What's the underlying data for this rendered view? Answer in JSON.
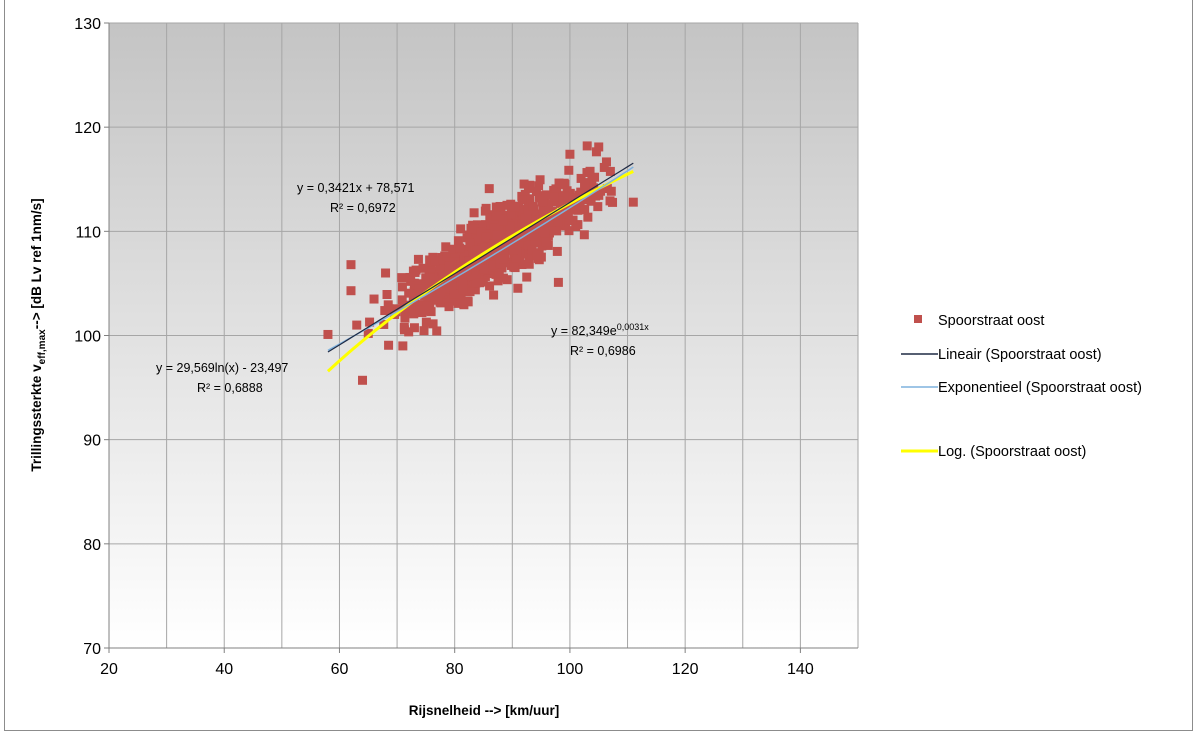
{
  "chart_data": {
    "type": "scatter",
    "title": "",
    "xlabel": "Rijsnelheid --> [km/uur]",
    "ylabel": {
      "main": "Trillingssterkte v",
      "subscript": "eff,max",
      "suffix": "--> [dB Lv ref 1nm/s]"
    },
    "xlim": [
      20,
      150
    ],
    "ylim": [
      70,
      130
    ],
    "x_ticks": [
      20,
      40,
      60,
      80,
      100,
      120,
      140
    ],
    "y_ticks": [
      70,
      80,
      90,
      100,
      110,
      120,
      130
    ],
    "x_minor_grid_step": 10,
    "grid": true,
    "legend_position": "right",
    "colors": {
      "scatter": "#C0504D",
      "linear": "#1F2A44",
      "exponential": "#7FB2DE",
      "log": "#FFFF00",
      "plot_bg_top": "#C4C4C4",
      "plot_bg_bottom": "#FFFFFF",
      "grid": "#A6A6A6"
    },
    "series": [
      {
        "name": "Spoorstraat oost",
        "kind": "scatter",
        "x_range": [
          58,
          111
        ],
        "outliers": [
          [
            58,
            100.1
          ],
          [
            62,
            106.8
          ],
          [
            62,
            104.3
          ],
          [
            64,
            95.7
          ],
          [
            63,
            101.0
          ],
          [
            65,
            100.2
          ],
          [
            71,
            99.0
          ],
          [
            98,
            105.1
          ],
          [
            111,
            112.8
          ],
          [
            86,
            114.1
          ],
          [
            103,
            118.2
          ],
          [
            100,
            117.4
          ],
          [
            105,
            118.1
          ],
          [
            66,
            103.5
          ],
          [
            68,
            106.0
          ]
        ]
      },
      {
        "name": "Lineair (Spoorstraat oost)",
        "kind": "trend-linear",
        "equation": "y = 0,3421x + 78,571",
        "r2": "R² = 0,6972",
        "a": 0.3421,
        "b": 78.571,
        "x_range": [
          58,
          111
        ]
      },
      {
        "name": "Exponentieel (Spoorstraat oost)",
        "kind": "trend-exponential",
        "equation_base": "y = 82,349e",
        "equation_exponent": "0,0031x",
        "r2": "R² = 0,6986",
        "a": 82.349,
        "b": 0.0031,
        "x_range": [
          58,
          111
        ]
      },
      {
        "name": "Log. (Spoorstraat oost)",
        "kind": "trend-log",
        "equation": "y = 29,569ln(x) - 23,497",
        "r2": "R² = 0,6888",
        "a": 29.569,
        "b": -23.497,
        "x_range": [
          58,
          111
        ]
      }
    ]
  }
}
